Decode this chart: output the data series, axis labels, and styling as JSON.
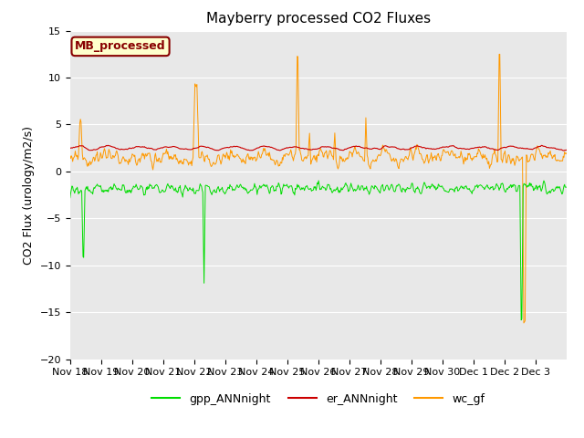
{
  "title": "Mayberry processed CO2 Fluxes",
  "ylabel": "CO2 Flux (urology/m2/s)",
  "xlabel": "",
  "ylim": [
    -20,
    15
  ],
  "yticks": [
    -20,
    -15,
    -10,
    -5,
    0,
    5,
    10,
    15
  ],
  "n_days": 16,
  "date_labels": [
    "Nov 18",
    "Nov 19",
    "Nov 20",
    "Nov 21",
    "Nov 22",
    "Nov 23",
    "Nov 24",
    "Nov 25",
    "Nov 26",
    "Nov 27",
    "Nov 28",
    "Nov 29",
    "Nov 30",
    "Dec 1",
    "Dec 2",
    "Dec 3"
  ],
  "colors": {
    "gpp": "#00dd00",
    "er": "#cc0000",
    "wc": "#ff9900"
  },
  "legend_box_label": "MB_processed",
  "legend_box_facecolor": "#ffffcc",
  "legend_box_edgecolor": "#880000",
  "legend_box_textcolor": "#880000",
  "bg_color": "#e8e8e8",
  "title_fontsize": 11,
  "axis_fontsize": 9,
  "tick_fontsize": 8,
  "legend_fontsize": 9
}
